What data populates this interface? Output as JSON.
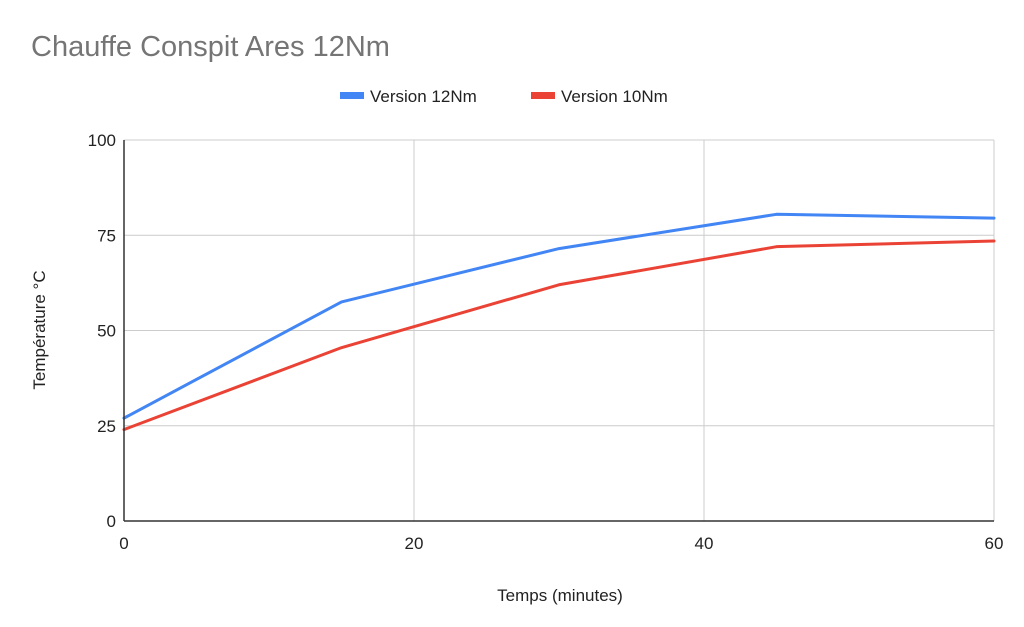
{
  "chart_data": {
    "type": "line",
    "title": "Chauffe Conspit Ares 12Nm",
    "xlabel": "Temps (minutes)",
    "ylabel": "Température °C",
    "xlim": [
      0,
      60
    ],
    "ylim": [
      0,
      100
    ],
    "x_ticks": [
      0,
      20,
      40,
      60
    ],
    "y_ticks": [
      0,
      25,
      50,
      75,
      100
    ],
    "grid": true,
    "legend_position": "top",
    "series": [
      {
        "name": "Version 12Nm",
        "color": "#4285f4",
        "points": [
          [
            0,
            27
          ],
          [
            15,
            57.5
          ],
          [
            30,
            71.5
          ],
          [
            45,
            80.5
          ],
          [
            60,
            79.5
          ]
        ]
      },
      {
        "name": "Version 10Nm",
        "color": "#ea4335",
        "points": [
          [
            0,
            24
          ],
          [
            15,
            45.5
          ],
          [
            30,
            62
          ],
          [
            45,
            72
          ],
          [
            60,
            73.5
          ]
        ]
      }
    ]
  }
}
